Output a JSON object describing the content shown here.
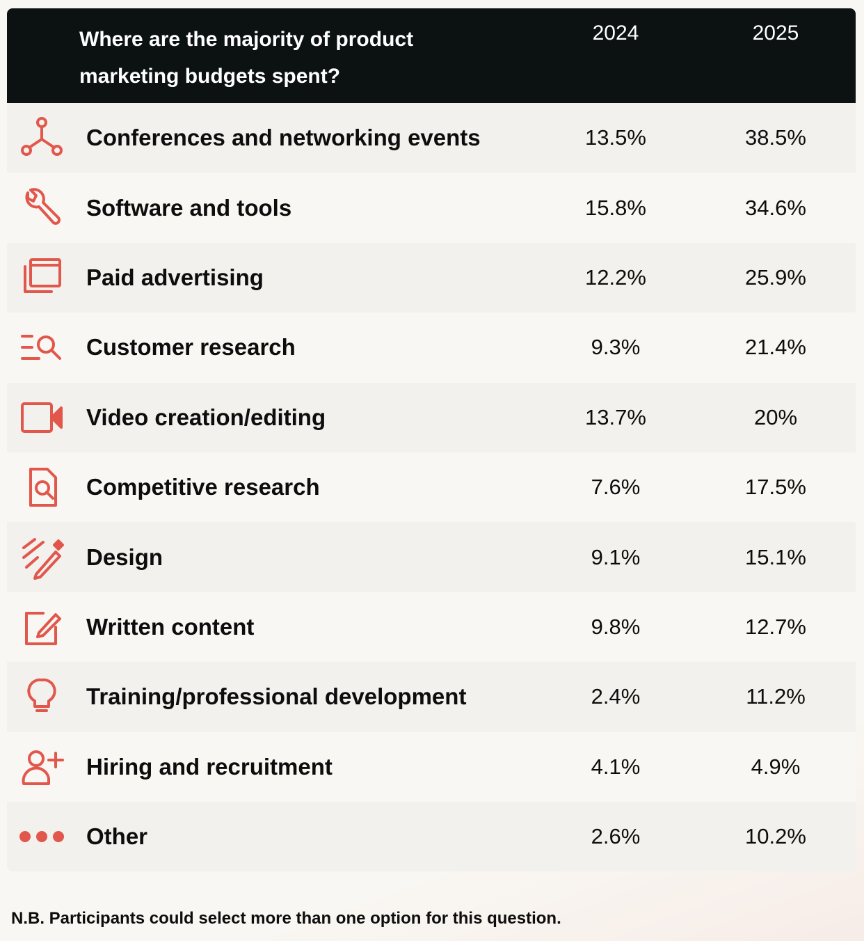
{
  "chart_data": {
    "type": "table",
    "title": "Where are the majority of product marketing budgets spent?",
    "columns": [
      "2024",
      "2025"
    ],
    "rows": [
      {
        "label": "Conferences and networking events",
        "icon": "network-nodes-icon",
        "v2024": "13.5%",
        "v2025": "38.5%"
      },
      {
        "label": "Software and tools",
        "icon": "wrench-icon",
        "v2024": "15.8%",
        "v2025": "34.6%"
      },
      {
        "label": "Paid advertising",
        "icon": "stacked-windows-icon",
        "v2024": "12.2%",
        "v2025": "25.9%"
      },
      {
        "label": "Customer research",
        "icon": "list-search-icon",
        "v2024": "9.3%",
        "v2025": "21.4%"
      },
      {
        "label": "Video creation/editing",
        "icon": "video-camera-icon",
        "v2024": "13.7%",
        "v2025": "20%"
      },
      {
        "label": "Competitive research",
        "icon": "document-search-icon",
        "v2024": "7.6%",
        "v2025": "17.5%"
      },
      {
        "label": "Design",
        "icon": "pencil-scribble-icon",
        "v2024": "9.1%",
        "v2025": "15.1%"
      },
      {
        "label": "Written content",
        "icon": "edit-square-icon",
        "v2024": "9.8%",
        "v2025": "12.7%"
      },
      {
        "label": "Training/professional development",
        "icon": "lightbulb-icon",
        "v2024": "2.4%",
        "v2025": "11.2%"
      },
      {
        "label": "Hiring and recruitment",
        "icon": "user-add-icon",
        "v2024": "4.1%",
        "v2025": "4.9%"
      },
      {
        "label": "Other",
        "icon": "more-dots-icon",
        "v2024": "2.6%",
        "v2025": "10.2%"
      }
    ]
  },
  "footnote": "N.B. Participants could select more than one option for this question.",
  "colors": {
    "header_bg": "#0b1211",
    "icon_accent": "#e2574c",
    "row_alt": "#f3f1ed",
    "row_base": "#f9f7f3"
  }
}
